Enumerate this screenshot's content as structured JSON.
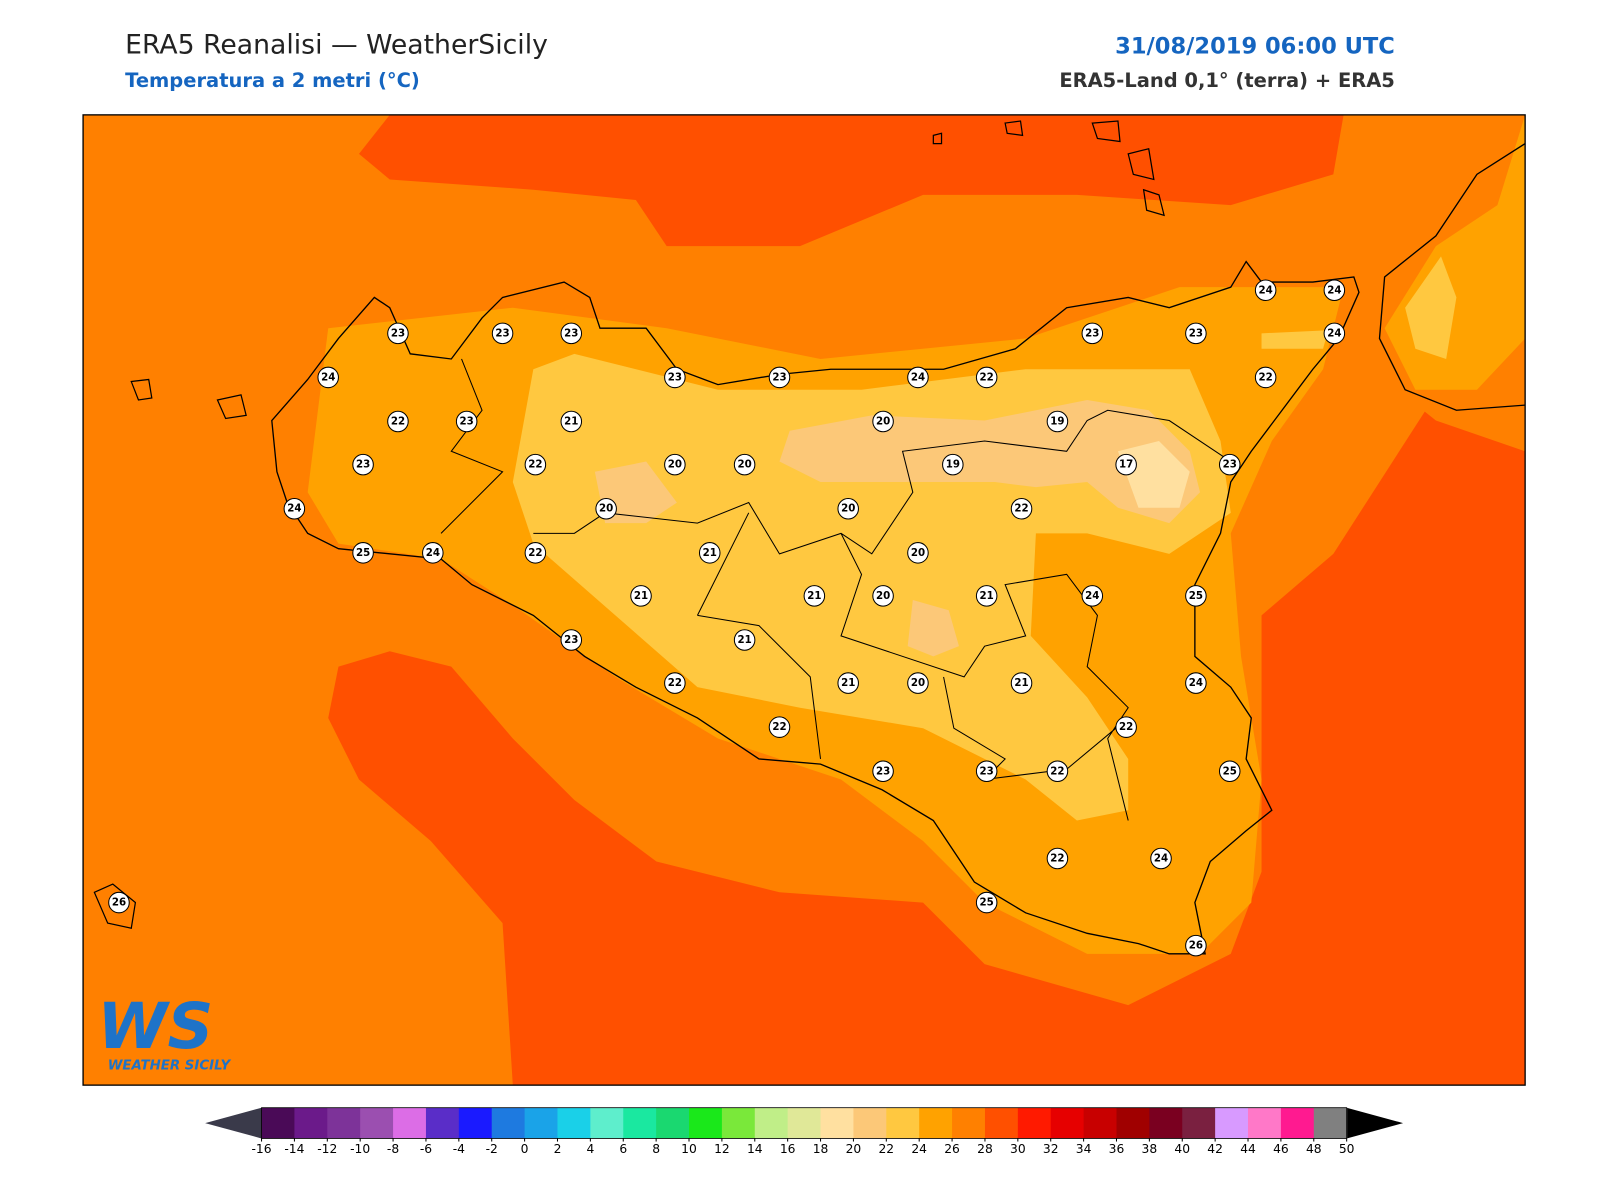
{
  "header": {
    "title": "ERA5 Reanalisi — WeatherSicily",
    "subtitle": "Temperatura a 2 metri (°C)",
    "datetime": "31/08/2019 06:00 UTC",
    "source": "ERA5-Land 0,1° (terra) + ERA5"
  },
  "stations": [
    23,
    23,
    23,
    24,
    22,
    23,
    21,
    23,
    23,
    24,
    22,
    23,
    23,
    24,
    24,
    24,
    22,
    23,
    22,
    20,
    20,
    20,
    19,
    19,
    17,
    23,
    24,
    20,
    20,
    22,
    25,
    24,
    22,
    21,
    20,
    21,
    21,
    20,
    21,
    24,
    25,
    23,
    21,
    22,
    21,
    20,
    21,
    24,
    22,
    22,
    23,
    23,
    22,
    25,
    22,
    24,
    25,
    26,
    26
  ],
  "colorbar": {
    "ticks": [
      -16,
      -14,
      -12,
      -10,
      -8,
      -6,
      -4,
      -2,
      0,
      2,
      4,
      6,
      8,
      10,
      12,
      14,
      16,
      18,
      20,
      22,
      24,
      26,
      28,
      30,
      32,
      34,
      36,
      38,
      40,
      42,
      44,
      46,
      48,
      50
    ],
    "colors": [
      "#4a0a57",
      "#6b1a8a",
      "#7d3399",
      "#9b4fb0",
      "#dc6de6",
      "#5a2dc8",
      "#1a1aff",
      "#1e7ae0",
      "#1aa3e8",
      "#1ad0e8",
      "#5eeecc",
      "#1ae8a0",
      "#1ad870",
      "#1ae81a",
      "#7ae83a",
      "#c0ee88",
      "#e0e898",
      "#ffe0a0",
      "#fcc878",
      "#ffc840",
      "#ffa200",
      "#ff8000",
      "#ff5000",
      "#ff1a00",
      "#e60000",
      "#c80000",
      "#a00000",
      "#7a0020",
      "#7a2040",
      "#d89aff",
      "#ff78c8",
      "#ff1a90",
      "#808080",
      "#404040"
    ],
    "under_color": "#3a3a4a",
    "over_color": "#000000"
  },
  "logo": {
    "initials": "WS",
    "name": "WEATHER SICILY"
  }
}
